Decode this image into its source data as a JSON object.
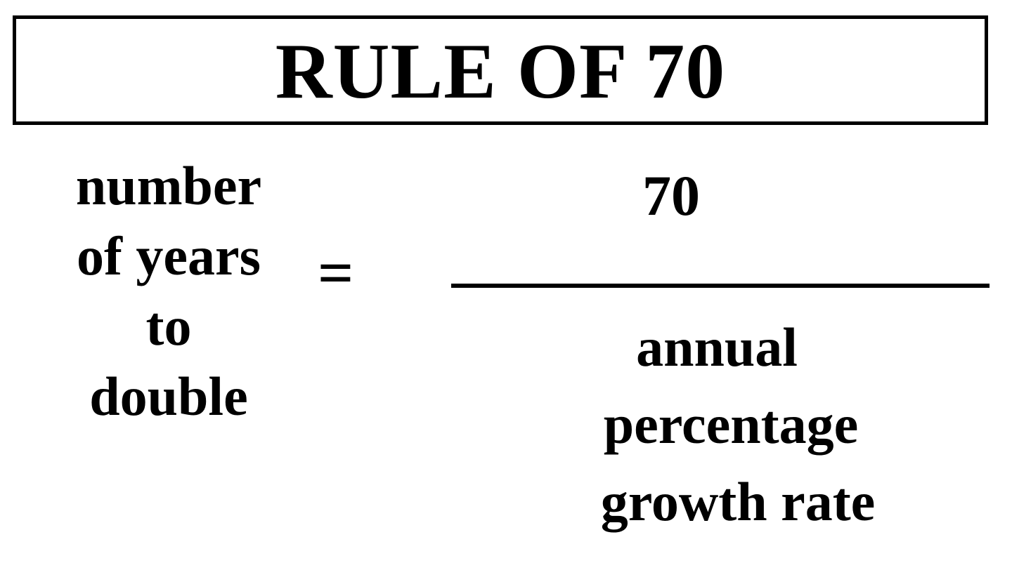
{
  "title": "RULE OF 70",
  "lhs": [
    "number",
    "of years",
    "to",
    "double"
  ],
  "equals": "=",
  "numerator": "70",
  "denominator": [
    "annual",
    "percentage",
    "growth rate"
  ]
}
